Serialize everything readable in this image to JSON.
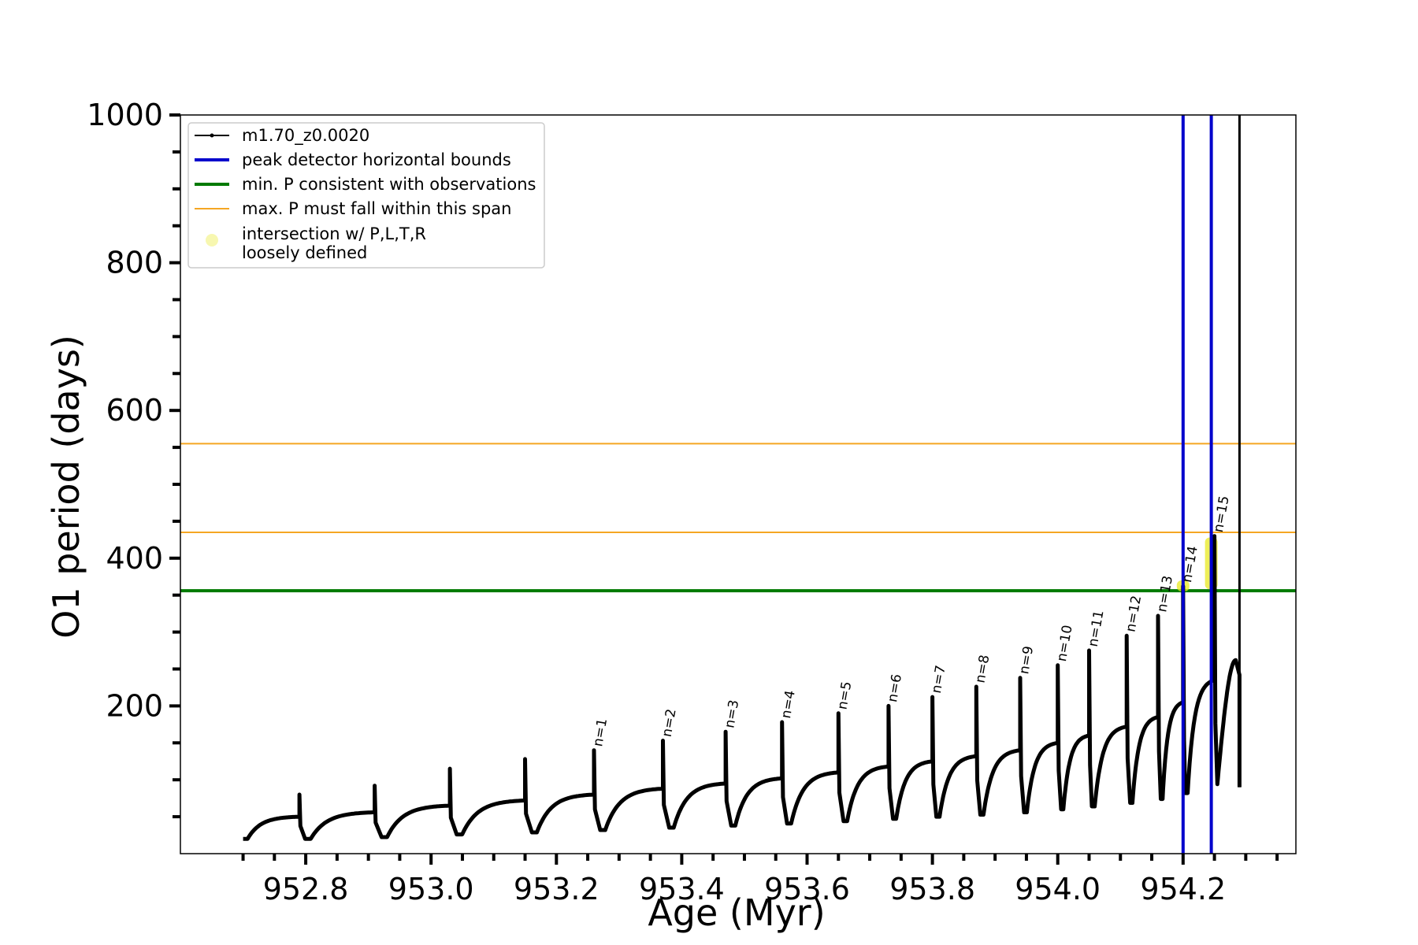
{
  "chart_data": {
    "type": "line",
    "title": "",
    "xlabel": "Age (Myr)",
    "ylabel": "O1 period (days)",
    "xlim": [
      952.6,
      954.38
    ],
    "ylim": [
      0,
      1000
    ],
    "xticks": [
      952.8,
      953.0,
      953.2,
      953.4,
      953.6,
      953.8,
      954.0,
      954.2
    ],
    "xtick_labels": [
      "952.8",
      "953.0",
      "953.2",
      "953.4",
      "953.6",
      "953.8",
      "954.0",
      "954.2"
    ],
    "yticks": [
      200,
      400,
      600,
      800,
      1000
    ],
    "ytick_labels": [
      "200",
      "400",
      "600",
      "800",
      "1000"
    ],
    "grid": false,
    "legend_position": "top-left",
    "series": [
      {
        "name": "m1.70_z0.0020",
        "color": "#000000",
        "kind": "pulse-cycles",
        "start": [
          952.7,
          20
        ],
        "cycles": [
          {
            "age": 952.79,
            "peak": 80,
            "base": 50
          },
          {
            "age": 952.91,
            "peak": 92,
            "base": 56
          },
          {
            "age": 953.03,
            "peak": 115,
            "base": 65
          },
          {
            "age": 953.15,
            "peak": 128,
            "base": 72
          },
          {
            "age": 953.26,
            "peak": 140,
            "base": 80
          },
          {
            "age": 953.37,
            "peak": 153,
            "base": 88
          },
          {
            "age": 953.47,
            "peak": 165,
            "base": 95
          },
          {
            "age": 953.56,
            "peak": 178,
            "base": 102
          },
          {
            "age": 953.65,
            "peak": 190,
            "base": 110
          },
          {
            "age": 953.73,
            "peak": 200,
            "base": 118
          },
          {
            "age": 953.8,
            "peak": 212,
            "base": 125
          },
          {
            "age": 953.87,
            "peak": 226,
            "base": 132
          },
          {
            "age": 953.94,
            "peak": 238,
            "base": 140
          },
          {
            "age": 954.0,
            "peak": 255,
            "base": 150
          },
          {
            "age": 954.05,
            "peak": 275,
            "base": 160
          },
          {
            "age": 954.11,
            "peak": 295,
            "base": 172
          },
          {
            "age": 954.16,
            "peak": 322,
            "base": 185
          },
          {
            "age": 954.2,
            "peak": 362,
            "base": 205
          },
          {
            "age": 954.25,
            "peak": 430,
            "base": 235
          }
        ],
        "final": {
          "age": 954.29,
          "top": 262,
          "spike_top": 1000,
          "drop": 90
        }
      }
    ],
    "peak_labels": [
      "n=1",
      "n=2",
      "n=3",
      "n=4",
      "n=5",
      "n=6",
      "n=7",
      "n=8",
      "n=9",
      "n=10",
      "n=11",
      "n=12",
      "n=13",
      "n=14",
      "n=15"
    ],
    "peak_label_points": [
      [
        953.26,
        140
      ],
      [
        953.37,
        153
      ],
      [
        953.47,
        165
      ],
      [
        953.56,
        178
      ],
      [
        953.65,
        190
      ],
      [
        953.73,
        200
      ],
      [
        953.8,
        212
      ],
      [
        953.87,
        226
      ],
      [
        953.94,
        238
      ],
      [
        954.0,
        255
      ],
      [
        954.05,
        275
      ],
      [
        954.11,
        295
      ],
      [
        954.16,
        322
      ],
      [
        954.2,
        362
      ],
      [
        954.25,
        430
      ]
    ],
    "vertical_lines": [
      {
        "x": 954.2,
        "color": "#0000cc"
      },
      {
        "x": 954.245,
        "color": "#0000cc"
      }
    ],
    "green_line": {
      "y": 356,
      "color": "#007a00"
    },
    "orange_lines": [
      {
        "y": 555,
        "color": "#f5a623"
      },
      {
        "y": 435,
        "color": "#f5a623"
      }
    ],
    "highlights": [
      {
        "x": 954.2,
        "y_from": 355,
        "y_to": 370
      },
      {
        "x": 954.245,
        "y_from": 358,
        "y_to": 428
      }
    ],
    "legend": [
      {
        "label": "m1.70_z0.0020",
        "marker": "line-dot",
        "color": "#000000"
      },
      {
        "label": "peak detector horizontal bounds",
        "marker": "line",
        "color": "#0000cc"
      },
      {
        "label": "min. P consistent with observations",
        "marker": "line",
        "color": "#007a00"
      },
      {
        "label": "max. P must fall within this span",
        "marker": "thin-line",
        "color": "#f5a623"
      },
      {
        "label": "intersection w/ P,L,T,R",
        "label2": "loosely defined",
        "marker": "dot",
        "color": "#f7f7b0"
      }
    ]
  }
}
